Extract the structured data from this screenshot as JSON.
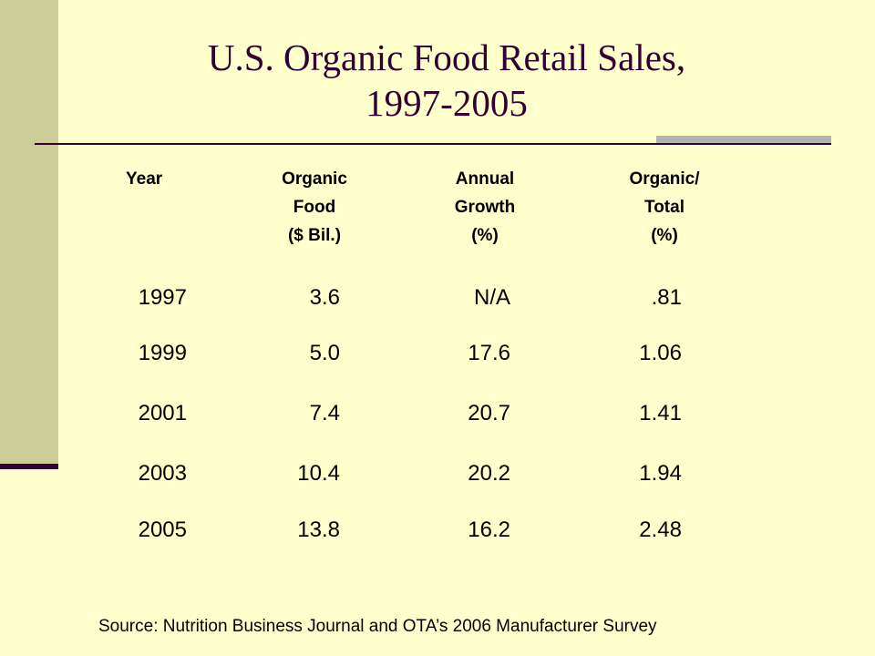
{
  "title": {
    "line1": "U.S. Organic Food Retail Sales,",
    "line2": "1997-2005"
  },
  "table": {
    "headers": {
      "year": "Year",
      "organic_food": [
        "Organic",
        "Food",
        "($ Bil.)"
      ],
      "annual_growth": [
        "Annual",
        "Growth",
        "(%)"
      ],
      "organic_total": [
        "Organic/",
        "Total",
        "(%)"
      ]
    },
    "rows": [
      {
        "year": "1997",
        "organic_food": "3.6",
        "annual_growth": "N/A",
        "organic_total": ".81"
      },
      {
        "year": "1999",
        "organic_food": "5.0",
        "annual_growth": "17.6",
        "organic_total": "1.06"
      },
      {
        "year": "2001",
        "organic_food": "7.4",
        "annual_growth": "20.7",
        "organic_total": "1.41"
      },
      {
        "year": "2003",
        "organic_food": "10.4",
        "annual_growth": "20.2",
        "organic_total": "1.94"
      },
      {
        "year": "2005",
        "organic_food": "13.8",
        "annual_growth": "16.2",
        "organic_total": "2.48"
      }
    ]
  },
  "source": "Source: Nutrition Business Journal and OTA’s 2006 Manufacturer Survey",
  "colors": {
    "background": "#ffffcc",
    "left_band": "#cccc99",
    "title": "#330033",
    "rule_accent": "#b2b2b2"
  }
}
